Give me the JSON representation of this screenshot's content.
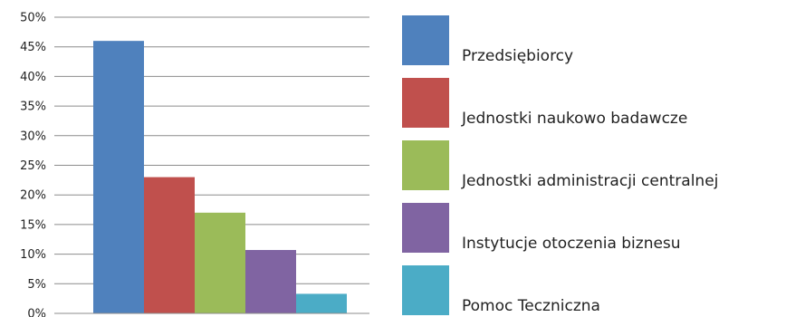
{
  "chart_data": {
    "type": "bar",
    "title": "",
    "xlabel": "",
    "ylabel": "",
    "ylim": [
      0,
      50
    ],
    "y_ticks": [
      "0%",
      "5%",
      "10%",
      "15%",
      "20%",
      "25%",
      "30%",
      "35%",
      "40%",
      "45%",
      "50%"
    ],
    "y_tick_values": [
      0,
      5,
      10,
      15,
      20,
      25,
      30,
      35,
      40,
      45,
      50
    ],
    "grid": true,
    "legend_position": "right",
    "series": [
      {
        "name": "Przedsiębiorcy",
        "value": 46,
        "color": "#4F81BD"
      },
      {
        "name": "Jednostki naukowo badawcze",
        "value": 23,
        "color": "#C0504D"
      },
      {
        "name": "Jednostki administracji centralnej",
        "value": 17,
        "color": "#9BBB59"
      },
      {
        "name": "Instytucje otoczenia biznesu",
        "value": 10.7,
        "color": "#8064A2"
      },
      {
        "name": "Pomoc Teczniczna",
        "value": 3.3,
        "color": "#4BACC6"
      }
    ]
  }
}
